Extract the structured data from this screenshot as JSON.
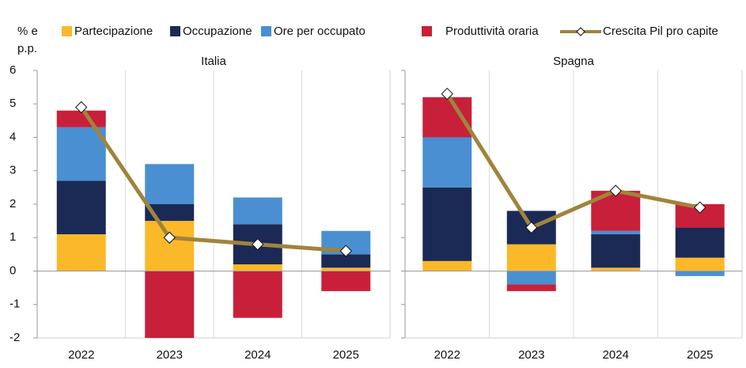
{
  "chart_data": {
    "type": "bar",
    "y_label": [
      "% e",
      "p.p."
    ],
    "categories": [
      "2022",
      "2023",
      "2024",
      "2025"
    ],
    "ylim": [
      -2,
      6
    ],
    "yticks": [
      -2,
      -1,
      0,
      1,
      2,
      3,
      4,
      5,
      6
    ],
    "series": [
      {
        "name": "Partecipazione",
        "color": "#fbb829",
        "type": "bar"
      },
      {
        "name": "Occupazione",
        "color": "#1b2a55",
        "type": "bar"
      },
      {
        "name": "Ore per occupato",
        "color": "#4a8fd1",
        "type": "bar"
      },
      {
        "name": "Produttività oraria",
        "color": "#c8203a",
        "type": "bar"
      },
      {
        "name": "Crescita Pil pro capite",
        "color": "#a0843c",
        "type": "line"
      }
    ],
    "panels": [
      {
        "title": "Italia",
        "values": [
          [
            1.1,
            1.5,
            0.2,
            0.1
          ],
          [
            1.6,
            0.5,
            1.2,
            0.4
          ],
          [
            1.6,
            1.2,
            0.8,
            0.7
          ],
          [
            0.5,
            -2.1,
            -1.4,
            -0.6
          ],
          [
            4.9,
            1.0,
            0.8,
            0.6
          ]
        ]
      },
      {
        "title": "Spagna",
        "values": [
          [
            0.3,
            0.8,
            0.1,
            0.4
          ],
          [
            2.2,
            1.0,
            1.0,
            0.9
          ],
          [
            1.5,
            -0.4,
            0.1,
            -0.15
          ],
          [
            1.2,
            -0.2,
            1.2,
            0.7
          ],
          [
            5.3,
            1.3,
            2.4,
            1.9
          ]
        ]
      }
    ]
  }
}
